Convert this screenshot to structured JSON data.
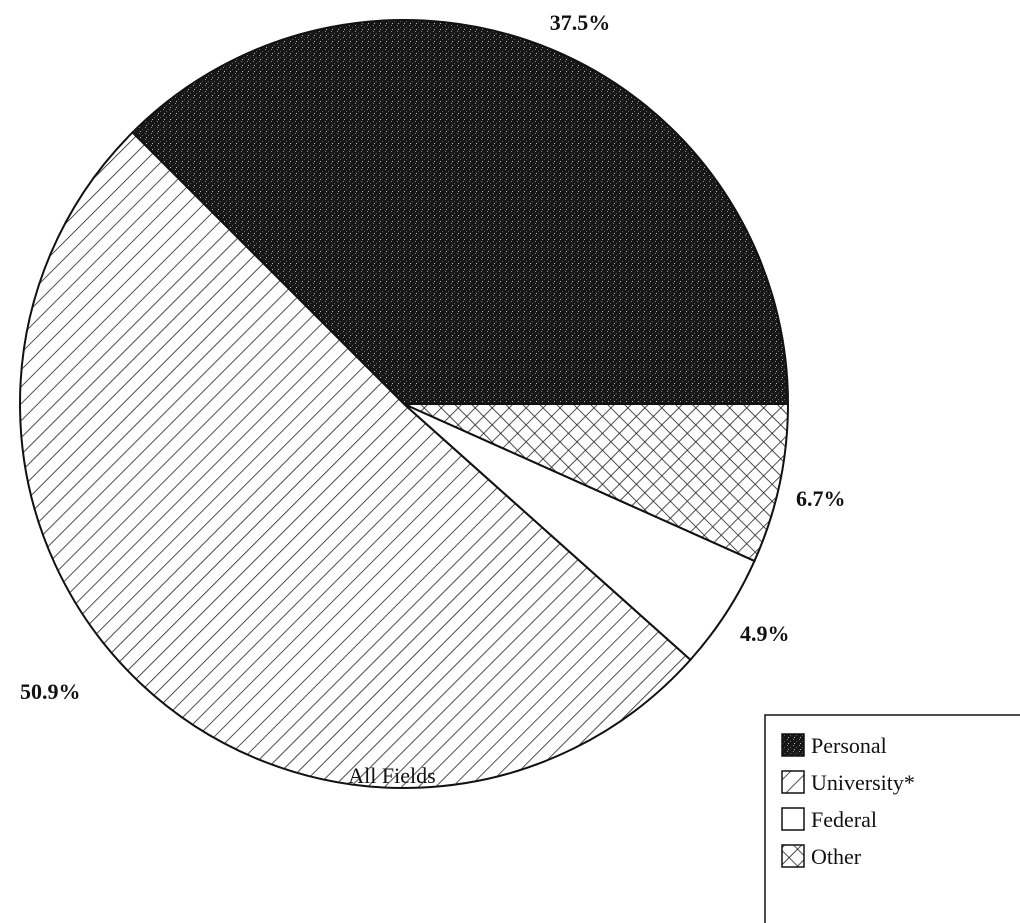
{
  "chart_data": {
    "type": "pie",
    "caption": "All Fields",
    "start_angle_deg": 0,
    "direction": "counterclockwise",
    "slices": [
      {
        "name": "Personal",
        "value": 37.5,
        "label": "37.5%",
        "pattern": "personal",
        "fill": "#1a1a1a"
      },
      {
        "name": "University*",
        "value": 50.9,
        "label": "50.9%",
        "pattern": "university",
        "fill": "#ffffff"
      },
      {
        "name": "Federal",
        "value": 4.9,
        "label": "4.9%",
        "pattern": "federal",
        "fill": "#ffffff"
      },
      {
        "name": "Other",
        "value": 6.7,
        "label": "6.7%",
        "pattern": "other",
        "fill": "#ffffff"
      }
    ],
    "legend": {
      "placement": "bottom-right",
      "entries": [
        "Personal",
        "University*",
        "Federal",
        "Other"
      ]
    }
  }
}
